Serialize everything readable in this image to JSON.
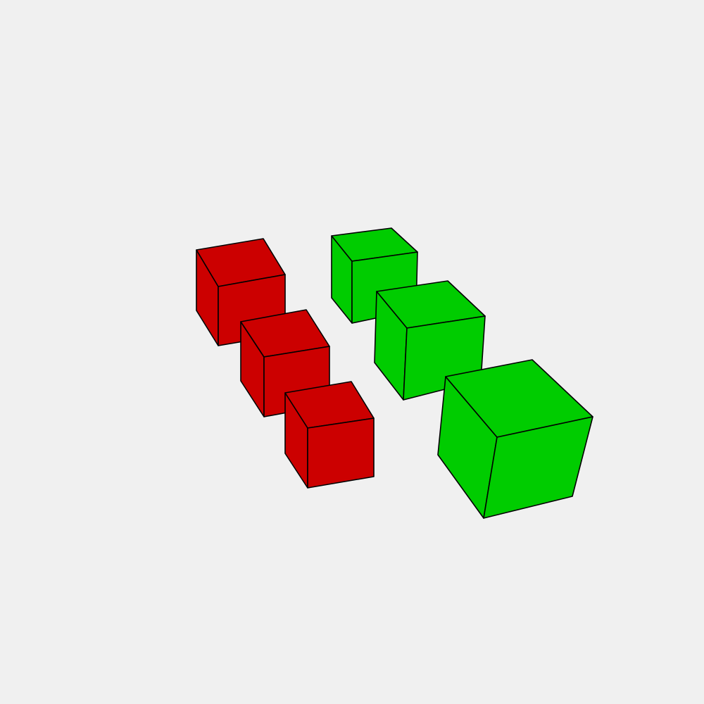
{
  "scene": {
    "background_color": "#f0f0f0",
    "edge_color": "#000000",
    "groups": [
      {
        "name": "red-cubes",
        "color": "#cc0000",
        "count": 3
      },
      {
        "name": "green-cubes",
        "color": "#00cc00",
        "count": 3
      }
    ]
  }
}
